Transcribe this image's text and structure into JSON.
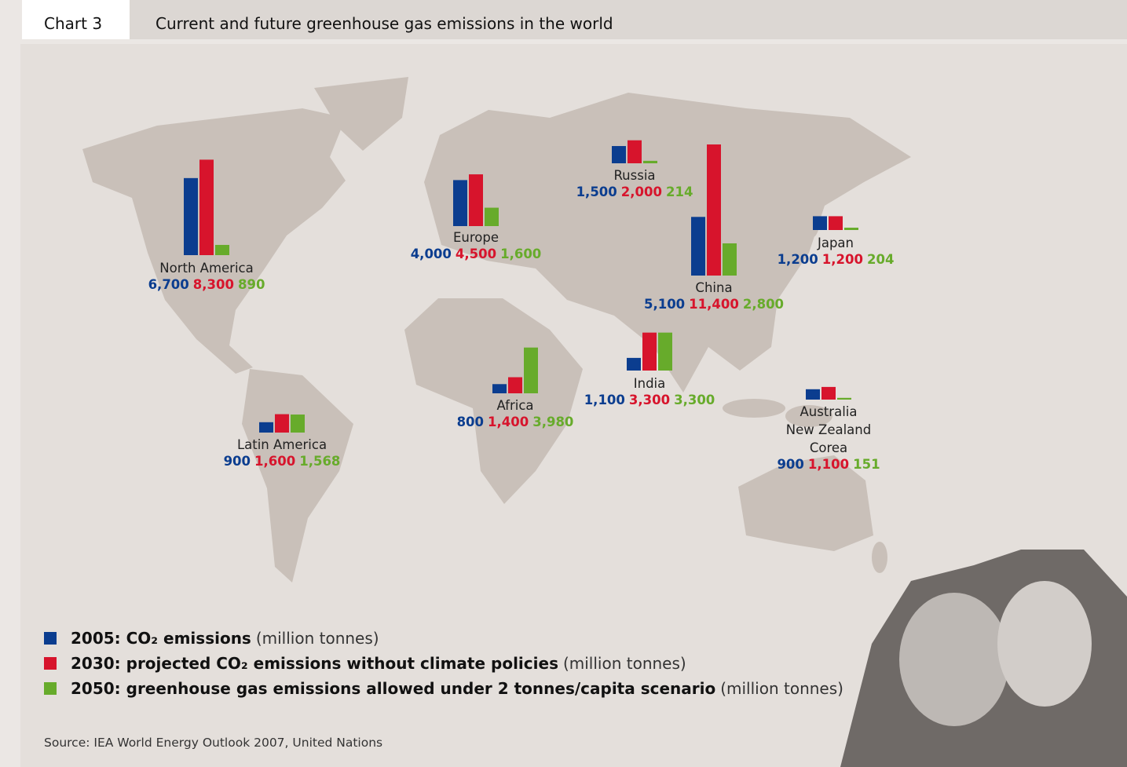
{
  "chart_data": {
    "type": "map-bar",
    "label": "Chart 3",
    "title": "Current and future greenhouse gas emissions in the world",
    "categories": [
      "North America",
      "Europe",
      "Russia",
      "China",
      "Japan",
      "India",
      "Africa",
      "Latin America",
      "Australia\nNew Zealand\nCorea"
    ],
    "series": [
      {
        "name": "2005: CO₂ emissions",
        "color": "#0b3d8f",
        "values": [
          6700,
          4000,
          1500,
          5100,
          1200,
          1100,
          800,
          900,
          900
        ],
        "value_labels": [
          "6,700",
          "4,000",
          "1,500",
          "5,100",
          "1,200",
          "1,100",
          "800",
          "900",
          "900"
        ]
      },
      {
        "name": "2030: projected CO₂ emissions without climate policies",
        "color": "#d7142c",
        "values": [
          8300,
          4500,
          2000,
          11400,
          1200,
          3300,
          1400,
          1600,
          1100
        ],
        "value_labels": [
          "8,300",
          "4,500",
          "2,000",
          "11,400",
          "1,200",
          "3,300",
          "1,400",
          "1,600",
          "1,100"
        ]
      },
      {
        "name": "2050: greenhouse gas emissions allowed under 2 tonnes/capita scenario",
        "color": "#67ab2b",
        "values": [
          890,
          1600,
          214,
          2800,
          204,
          3300,
          3980,
          1568,
          151
        ],
        "value_labels": [
          "890",
          "1,600",
          "214",
          "2,800",
          "204",
          "3,300",
          "3,980",
          "1,568",
          "151"
        ]
      }
    ],
    "unit": "(million tonnes)",
    "source": "Source: IEA World Energy Outlook 2007, United Nations"
  }
}
